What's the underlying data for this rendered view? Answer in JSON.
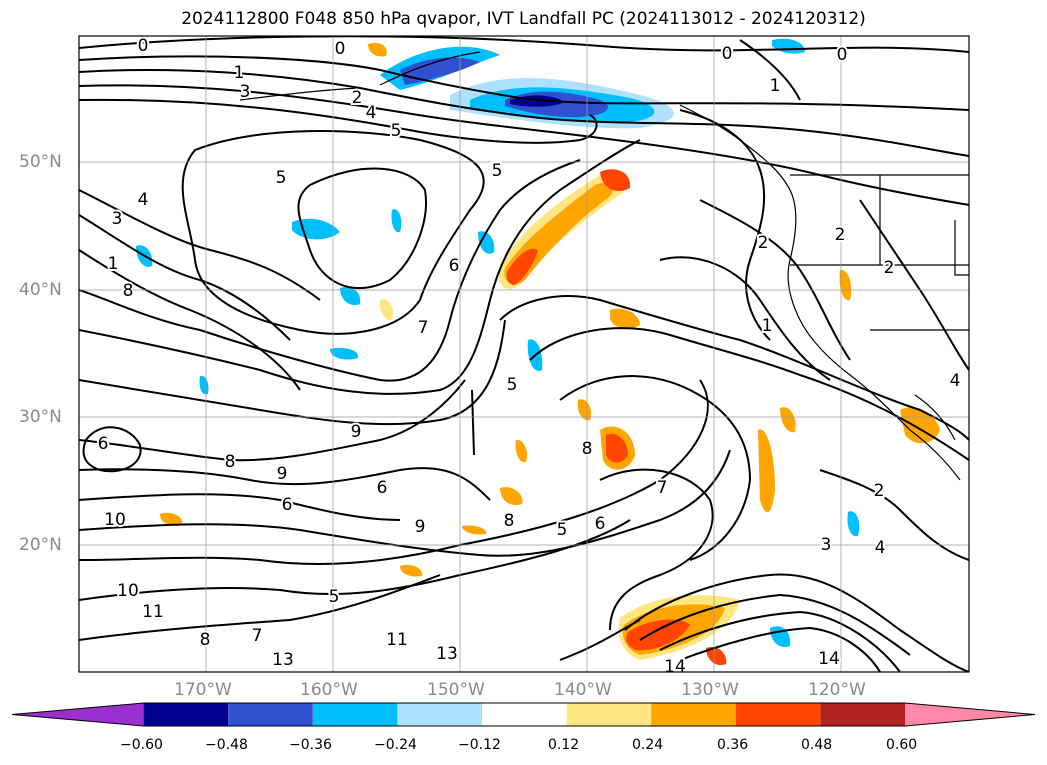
{
  "title": "2024112800 F048 850 hPa qvapor, IVT Landfall PC (2024113012 - 2024120312)",
  "latitude_labels": [
    "50°N",
    "40°N",
    "30°N",
    "20°N"
  ],
  "longitude_labels": [
    "170°W",
    "160°W",
    "150°W",
    "140°W",
    "130°W",
    "120°W"
  ],
  "colorbar": {
    "tick_labels": [
      "−0.60",
      "−0.48",
      "−0.36",
      "−0.24",
      "−0.12",
      "0.12",
      "0.24",
      "0.36",
      "0.48",
      "0.60"
    ],
    "colors": [
      "#9b30d0",
      "#000090",
      "#3050d0",
      "#00bfff",
      "#aee0ff",
      "#ffffff",
      "#ffe680",
      "#ffa500",
      "#ff4500",
      "#b22222",
      "#ff88aa"
    ]
  },
  "contour_labels": [
    "0",
    "0",
    "0",
    "0",
    "1",
    "1",
    "3",
    "2",
    "4",
    "5",
    "5",
    "5",
    "4",
    "3",
    "1",
    "8",
    "6",
    "7",
    "2",
    "2",
    "2",
    "1",
    "5",
    "6",
    "9",
    "8",
    "9",
    "6",
    "6",
    "10",
    "10",
    "11",
    "8",
    "7",
    "13",
    "11",
    "13",
    "5",
    "6",
    "7",
    "8",
    "8",
    "5",
    "2",
    "3",
    "4",
    "4",
    "14",
    "14",
    "9"
  ],
  "shading": {
    "negative_color": "#00bfff",
    "strong_negative_color": "#3050d0",
    "positive_color": "#ffa500",
    "strong_positive_color": "#ff4500"
  }
}
